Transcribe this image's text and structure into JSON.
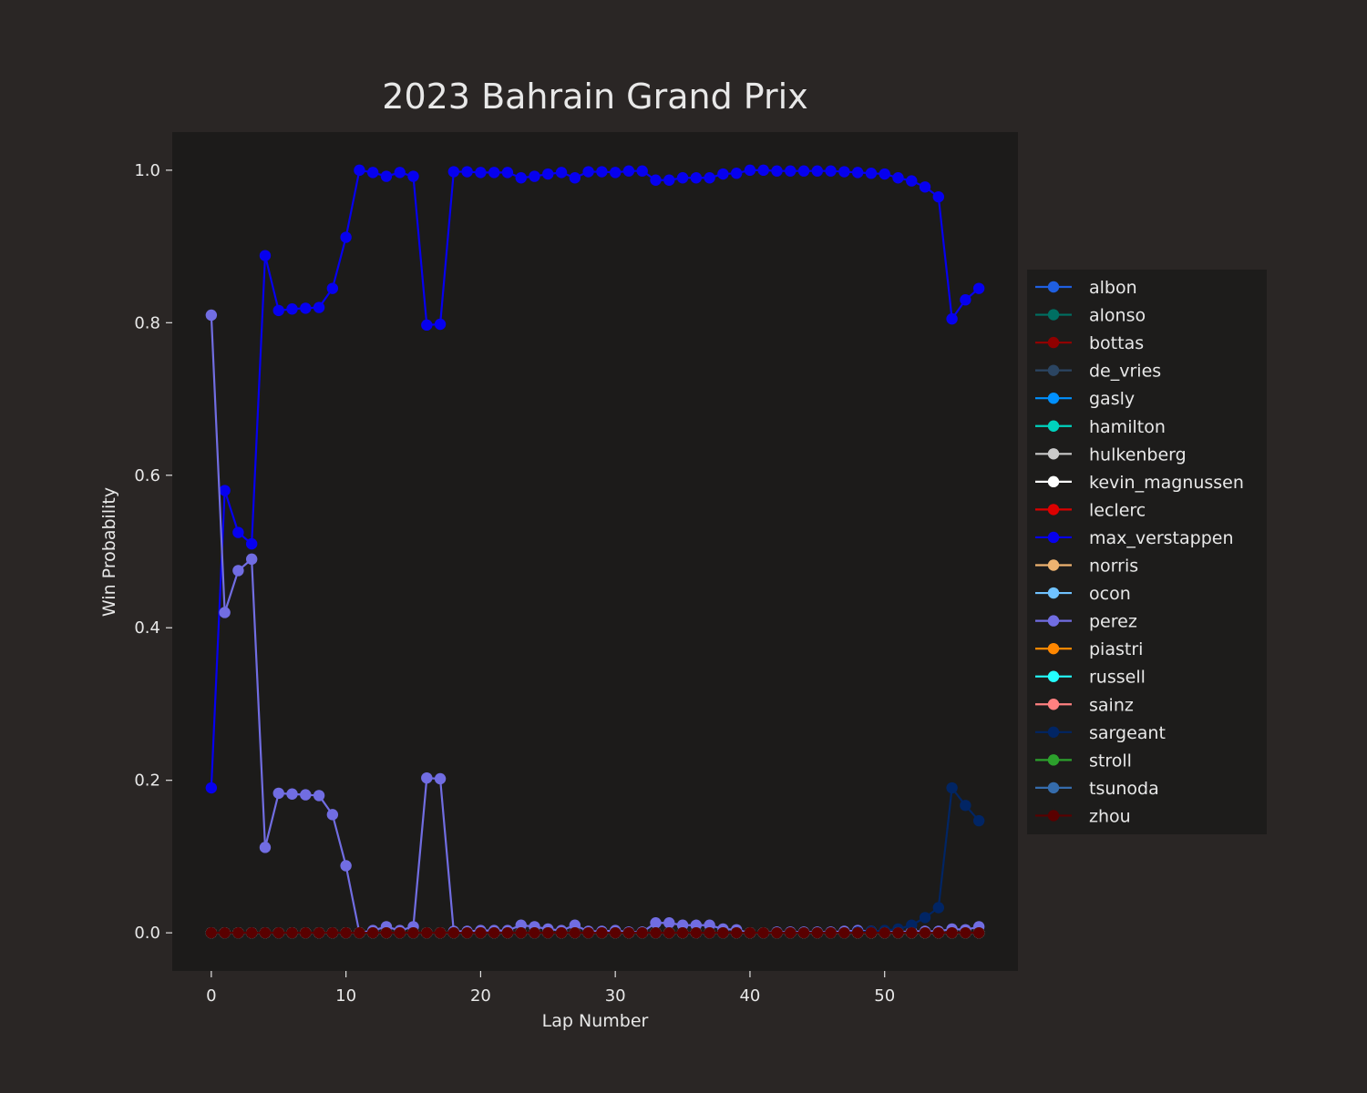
{
  "chart_data": {
    "type": "line",
    "title": "2023 Bahrain Grand Prix",
    "xlabel": "Lap Number",
    "ylabel": "Win Probability",
    "xlim": [
      -2.9,
      59.9
    ],
    "ylim": [
      -0.05,
      1.05
    ],
    "xticks": [
      0,
      10,
      20,
      30,
      40,
      50
    ],
    "yticks": [
      0.0,
      0.2,
      0.4,
      0.6,
      0.8,
      1.0
    ],
    "xtick_labels": [
      "0",
      "10",
      "20",
      "30",
      "40",
      "50"
    ],
    "ytick_labels": [
      "0.0",
      "0.2",
      "0.4",
      "0.6",
      "0.8",
      "1.0"
    ],
    "legend_position": "center-right outside",
    "x": [
      0,
      1,
      2,
      3,
      4,
      5,
      6,
      7,
      8,
      9,
      10,
      11,
      12,
      13,
      14,
      15,
      16,
      17,
      18,
      19,
      20,
      21,
      22,
      23,
      24,
      25,
      26,
      27,
      28,
      29,
      30,
      31,
      32,
      33,
      34,
      35,
      36,
      37,
      38,
      39,
      40,
      41,
      42,
      43,
      44,
      45,
      46,
      47,
      48,
      49,
      50,
      51,
      52,
      53,
      54,
      55,
      56,
      57
    ],
    "series": [
      {
        "name": "albon",
        "color": "#1f5fe0",
        "values": [
          0,
          0,
          0,
          0,
          0,
          0,
          0,
          0,
          0,
          0,
          0,
          0,
          0,
          0,
          0,
          0,
          0,
          0,
          0,
          0,
          0,
          0,
          0,
          0,
          0,
          0,
          0,
          0,
          0,
          0,
          0,
          0,
          0,
          0,
          0,
          0,
          0,
          0,
          0,
          0,
          0,
          0,
          0,
          0,
          0,
          0,
          0,
          0,
          0,
          0,
          0,
          0,
          0,
          0,
          0,
          0,
          0,
          0
        ]
      },
      {
        "name": "alonso",
        "color": "#006f62",
        "values": [
          0,
          0,
          0,
          0,
          0,
          0,
          0,
          0,
          0,
          0,
          0,
          0,
          0,
          0,
          0,
          0,
          0,
          0,
          0,
          0,
          0,
          0,
          0,
          0,
          0,
          0,
          0,
          0,
          0,
          0,
          0,
          0,
          0,
          0,
          0,
          0,
          0,
          0,
          0,
          0,
          0,
          0,
          0,
          0,
          0,
          0,
          0,
          0,
          0,
          0,
          0,
          0,
          0,
          0,
          0,
          0,
          0,
          0
        ]
      },
      {
        "name": "bottas",
        "color": "#900000",
        "values": [
          0,
          0,
          0,
          0,
          0,
          0,
          0,
          0,
          0,
          0,
          0,
          0,
          0,
          0,
          0,
          0,
          0,
          0,
          0,
          0,
          0,
          0,
          0,
          0,
          0,
          0,
          0,
          0,
          0,
          0,
          0,
          0,
          0,
          0,
          0,
          0,
          0,
          0,
          0,
          0,
          0,
          0,
          0,
          0,
          0,
          0,
          0,
          0,
          0,
          0,
          0,
          0,
          0,
          0,
          0,
          0,
          0,
          0
        ]
      },
      {
        "name": "de_vries",
        "color": "#2b4562",
        "values": [
          0,
          0,
          0,
          0,
          0,
          0,
          0,
          0,
          0,
          0,
          0,
          0,
          0,
          0,
          0,
          0,
          0,
          0,
          0,
          0,
          0,
          0,
          0,
          0,
          0,
          0,
          0,
          0,
          0,
          0,
          0,
          0,
          0,
          0,
          0,
          0,
          0,
          0,
          0,
          0,
          0,
          0,
          0,
          0,
          0,
          0,
          0,
          0,
          0,
          0,
          0,
          0,
          0,
          0,
          0,
          0,
          0,
          0
        ]
      },
      {
        "name": "gasly",
        "color": "#0090ff",
        "values": [
          0,
          0,
          0,
          0,
          0,
          0,
          0,
          0,
          0,
          0,
          0,
          0,
          0,
          0,
          0,
          0,
          0,
          0,
          0,
          0,
          0,
          0,
          0,
          0,
          0,
          0,
          0,
          0,
          0,
          0,
          0,
          0,
          0,
          0,
          0,
          0,
          0,
          0,
          0,
          0,
          0,
          0,
          0,
          0,
          0,
          0,
          0,
          0,
          0,
          0,
          0,
          0,
          0,
          0,
          0,
          0,
          0,
          0
        ]
      },
      {
        "name": "hamilton",
        "color": "#00d2be",
        "values": [
          0,
          0,
          0,
          0,
          0,
          0,
          0,
          0,
          0,
          0,
          0,
          0,
          0,
          0,
          0,
          0,
          0,
          0,
          0,
          0,
          0,
          0,
          0,
          0,
          0,
          0,
          0,
          0,
          0,
          0,
          0,
          0,
          0,
          0,
          0,
          0,
          0,
          0,
          0,
          0,
          0,
          0,
          0,
          0,
          0,
          0,
          0,
          0,
          0,
          0,
          0,
          0,
          0,
          0,
          0,
          0,
          0,
          0
        ]
      },
      {
        "name": "hulkenberg",
        "color": "#cacaca",
        "values": [
          0,
          0,
          0,
          0,
          0,
          0,
          0,
          0,
          0,
          0,
          0,
          0,
          0,
          0,
          0,
          0,
          0,
          0,
          0,
          0,
          0,
          0,
          0,
          0,
          0,
          0,
          0,
          0,
          0,
          0,
          0,
          0,
          0,
          0,
          0,
          0,
          0,
          0,
          0,
          0,
          0,
          0,
          0,
          0,
          0,
          0,
          0,
          0,
          0,
          0,
          0,
          0,
          0,
          0,
          0,
          0,
          0,
          0
        ]
      },
      {
        "name": "kevin_magnussen",
        "color": "#ffffff",
        "values": [
          0,
          0,
          0,
          0,
          0,
          0,
          0,
          0,
          0,
          0,
          0,
          0,
          0,
          0,
          0,
          0,
          0,
          0,
          0,
          0,
          0,
          0,
          0,
          0,
          0,
          0,
          0,
          0,
          0,
          0,
          0,
          0,
          0,
          0,
          0,
          0,
          0,
          0,
          0,
          0,
          0,
          0,
          0,
          0,
          0,
          0,
          0,
          0,
          0,
          0,
          0,
          0,
          0,
          0,
          0,
          0,
          0,
          0
        ]
      },
      {
        "name": "leclerc",
        "color": "#dc0000",
        "values": [
          0,
          0,
          0,
          0,
          0,
          0,
          0,
          0,
          0,
          0,
          0,
          0,
          0,
          0,
          0,
          0,
          0,
          0,
          0,
          0,
          0,
          0,
          0,
          0,
          0,
          0,
          0,
          0,
          0,
          0,
          0,
          0,
          0,
          0,
          0,
          0,
          0,
          0,
          0,
          0,
          0,
          0,
          0,
          0,
          0,
          0,
          0,
          0,
          0,
          0,
          0,
          0,
          0,
          0,
          0,
          0,
          0,
          0
        ]
      },
      {
        "name": "max_verstappen",
        "color": "#0600ef",
        "values": [
          0.19,
          0.58,
          0.525,
          0.51,
          0.888,
          0.816,
          0.818,
          0.819,
          0.82,
          0.845,
          0.912,
          1.0,
          0.997,
          0.992,
          0.997,
          0.992,
          0.797,
          0.798,
          0.998,
          0.998,
          0.997,
          0.997,
          0.997,
          0.99,
          0.992,
          0.995,
          0.997,
          0.99,
          0.998,
          0.998,
          0.997,
          0.999,
          0.999,
          0.987,
          0.987,
          0.99,
          0.99,
          0.99,
          0.995,
          0.996,
          1.0,
          1.0,
          0.999,
          0.999,
          0.999,
          0.999,
          0.999,
          0.998,
          0.997,
          0.996,
          0.995,
          0.99,
          0.986,
          0.978,
          0.965,
          0.805,
          0.83,
          0.845
        ]
      },
      {
        "name": "norris",
        "color": "#eeb370",
        "values": [
          0,
          0,
          0,
          0,
          0,
          0,
          0,
          0,
          0,
          0,
          0,
          0,
          0,
          0,
          0,
          0,
          0,
          0,
          0,
          0,
          0,
          0,
          0,
          0,
          0,
          0,
          0,
          0,
          0,
          0,
          0,
          0,
          0,
          0,
          0,
          0,
          0,
          0,
          0,
          0,
          0,
          0,
          0,
          0,
          0,
          0,
          0,
          0,
          0,
          0,
          0,
          0,
          0,
          0,
          0,
          0,
          0,
          0
        ]
      },
      {
        "name": "ocon",
        "color": "#70c2ff",
        "values": [
          0,
          0,
          0,
          0,
          0,
          0,
          0,
          0,
          0,
          0,
          0,
          0,
          0,
          0,
          0,
          0,
          0,
          0,
          0,
          0,
          0,
          0,
          0,
          0,
          0,
          0,
          0,
          0,
          0,
          0,
          0,
          0,
          0,
          0,
          0,
          0,
          0,
          0,
          0,
          0,
          0,
          0,
          0,
          0,
          0,
          0,
          0,
          0,
          0,
          0,
          0,
          0,
          0,
          0,
          0,
          0,
          0,
          0
        ]
      },
      {
        "name": "perez",
        "color": "#716de2",
        "values": [
          0.81,
          0.42,
          0.475,
          0.49,
          0.112,
          0.183,
          0.182,
          0.181,
          0.18,
          0.155,
          0.088,
          0,
          0.003,
          0.008,
          0.003,
          0.008,
          0.203,
          0.202,
          0.002,
          0.002,
          0.003,
          0.003,
          0.003,
          0.01,
          0.008,
          0.005,
          0.003,
          0.01,
          0.002,
          0.002,
          0.003,
          0.001,
          0.001,
          0.013,
          0.013,
          0.01,
          0.01,
          0.01,
          0.005,
          0.004,
          0,
          0,
          0.001,
          0.001,
          0.001,
          0.001,
          0.001,
          0.002,
          0.003,
          0.002,
          0.001,
          0.001,
          0.002,
          0.002,
          0.002,
          0.005,
          0.004,
          0.008
        ]
      },
      {
        "name": "piastri",
        "color": "#ff8700",
        "values": [
          0,
          0,
          0,
          0,
          0,
          0,
          0,
          0,
          0,
          0,
          0,
          0,
          0,
          0,
          0,
          0,
          0,
          0,
          0,
          0,
          0,
          0,
          0,
          0,
          0,
          0,
          0,
          0,
          0,
          0,
          0,
          0,
          0,
          0,
          0,
          0,
          0,
          0,
          0,
          0,
          0,
          0,
          0,
          0,
          0,
          0,
          0,
          0,
          0,
          0,
          0,
          0,
          0,
          0,
          0,
          0,
          0,
          0
        ]
      },
      {
        "name": "russell",
        "color": "#24ffff",
        "values": [
          0,
          0,
          0,
          0,
          0,
          0,
          0,
          0,
          0,
          0,
          0,
          0,
          0,
          0,
          0,
          0,
          0,
          0,
          0,
          0,
          0,
          0,
          0,
          0,
          0,
          0,
          0,
          0,
          0,
          0,
          0,
          0,
          0,
          0,
          0,
          0,
          0,
          0,
          0,
          0,
          0,
          0,
          0,
          0,
          0,
          0,
          0,
          0,
          0,
          0,
          0,
          0,
          0,
          0,
          0,
          0,
          0,
          0
        ]
      },
      {
        "name": "sainz",
        "color": "#ff8181",
        "values": [
          0,
          0,
          0,
          0,
          0,
          0,
          0,
          0,
          0,
          0,
          0,
          0,
          0,
          0,
          0,
          0,
          0,
          0,
          0,
          0,
          0,
          0,
          0,
          0,
          0,
          0,
          0,
          0,
          0,
          0,
          0,
          0,
          0,
          0,
          0,
          0,
          0,
          0,
          0,
          0,
          0,
          0,
          0,
          0,
          0,
          0,
          0,
          0,
          0,
          0,
          0,
          0,
          0,
          0,
          0,
          0,
          0,
          0
        ]
      },
      {
        "name": "sargeant",
        "color": "#012564",
        "values": [
          0,
          0,
          0,
          0,
          0,
          0,
          0,
          0,
          0,
          0,
          0,
          0,
          0,
          0,
          0,
          0,
          0,
          0,
          0,
          0,
          0,
          0,
          0,
          0,
          0,
          0,
          0,
          0,
          0,
          0,
          0,
          0,
          0,
          0,
          0,
          0,
          0,
          0,
          0,
          0,
          0,
          0,
          0,
          0,
          0,
          0,
          0,
          0,
          0.001,
          0.002,
          0.003,
          0.005,
          0.01,
          0.02,
          0.033,
          0.19,
          0.167,
          0.147
        ]
      },
      {
        "name": "stroll",
        "color": "#2ca02c",
        "values": [
          0,
          0,
          0,
          0,
          0,
          0,
          0,
          0,
          0,
          0,
          0,
          0,
          0,
          0,
          0,
          0,
          0,
          0,
          0,
          0,
          0,
          0,
          0,
          0,
          0,
          0,
          0,
          0,
          0,
          0,
          0,
          0,
          0,
          0,
          0,
          0,
          0,
          0,
          0,
          0,
          0,
          0,
          0,
          0,
          0,
          0,
          0,
          0,
          0,
          0,
          0,
          0,
          0,
          0,
          0,
          0,
          0,
          0
        ]
      },
      {
        "name": "tsunoda",
        "color": "#356cac",
        "values": [
          0,
          0,
          0,
          0,
          0,
          0,
          0,
          0,
          0,
          0,
          0,
          0,
          0,
          0,
          0,
          0,
          0,
          0,
          0,
          0,
          0,
          0,
          0,
          0,
          0,
          0,
          0,
          0,
          0,
          0,
          0,
          0,
          0,
          0,
          0,
          0,
          0,
          0,
          0,
          0,
          0,
          0,
          0,
          0,
          0,
          0,
          0,
          0,
          0,
          0,
          0,
          0,
          0,
          0,
          0,
          0,
          0,
          0
        ]
      },
      {
        "name": "zhou",
        "color": "#5a0000",
        "values": [
          0,
          0,
          0,
          0,
          0,
          0,
          0,
          0,
          0,
          0,
          0,
          0,
          0,
          0,
          0,
          0,
          0,
          0,
          0,
          0,
          0,
          0,
          0,
          0,
          0,
          0,
          0,
          0,
          0,
          0,
          0,
          0,
          0,
          0,
          0,
          0,
          0,
          0,
          0,
          0,
          0,
          0,
          0,
          0,
          0,
          0,
          0,
          0,
          0,
          0,
          0,
          0,
          0,
          0,
          0,
          0,
          0,
          0
        ]
      }
    ]
  }
}
